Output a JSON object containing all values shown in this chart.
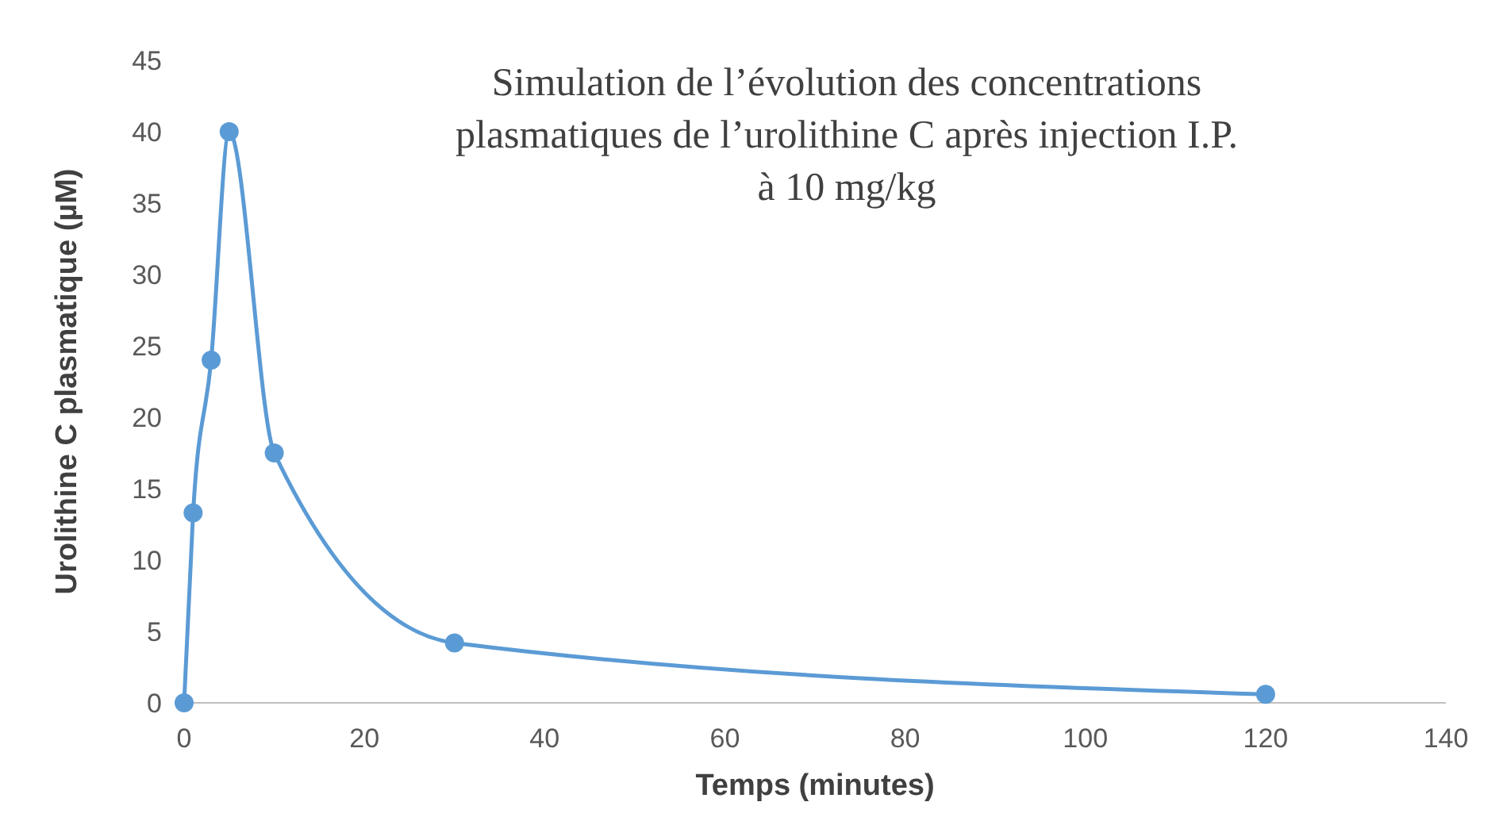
{
  "chart_data": {
    "type": "line",
    "title": "Simulation de l’évolution des concentrations plasmatiques de l’urolithine C après injection I.P. à 10 mg/kg",
    "xlabel": "Temps (minutes)",
    "ylabel": "Urolithine C plasmatique (µM)",
    "x": [
      0,
      1,
      3,
      5,
      10,
      30,
      120
    ],
    "series": [
      {
        "color": "#5b9bd5",
        "values": [
          0,
          13.3,
          24,
          40,
          17.5,
          4.2,
          0.6
        ]
      }
    ],
    "xlim": [
      0,
      140
    ],
    "xticks": [
      0,
      20,
      40,
      60,
      80,
      100,
      120,
      140
    ],
    "ylim": [
      0,
      45
    ],
    "yticks": [
      0,
      5,
      10,
      15,
      20,
      25,
      30,
      35,
      40,
      45
    ],
    "grid": false,
    "marker": "circle",
    "line_style": "solid"
  }
}
